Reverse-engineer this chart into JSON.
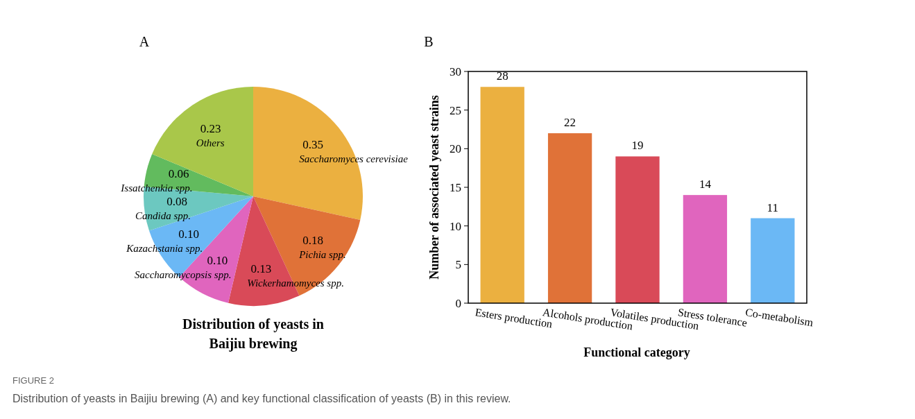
{
  "chart_data": [
    {
      "type": "pie",
      "title": "Distribution of yeasts in Baijiu brewing",
      "annotations": [
        "A"
      ],
      "categories": [
        "Saccharomyces cerevisiae",
        "Pichia spp.",
        "Wickerhamomyces spp.",
        "Saccharomycopsis spp.",
        "Kazachstania spp.",
        "Candida spp.",
        "Issatchenkia spp.",
        "Others"
      ],
      "values": [
        0.35,
        0.18,
        0.13,
        0.1,
        0.1,
        0.08,
        0.06,
        0.23
      ],
      "colors": [
        "#ebb040",
        "#e07238",
        "#d94a58",
        "#e065be",
        "#6bb8f5",
        "#6cc8c0",
        "#62bb5e",
        "#a9c74a"
      ],
      "value_labels": [
        "0.35",
        "0.18",
        "0.13",
        "0.10",
        "0.10",
        "0.08",
        "0.06",
        "0.23"
      ]
    },
    {
      "type": "bar",
      "annotations": [
        "B",
        "FIGURE 2",
        "Distribution of yeasts in Baijiu brewing (A) and key functional classification of yeasts (B) in this review."
      ],
      "xlabel": "Functional category",
      "ylabel": "Number of associated yeast strains",
      "categories": [
        "Esters production",
        "Alcohols production",
        "Volatiles production",
        "Stress tolerance",
        "Co-metabolism"
      ],
      "values": [
        28,
        22,
        19,
        14,
        11
      ],
      "colors": [
        "#ebb040",
        "#e07238",
        "#d94a58",
        "#e065be",
        "#6bb8f5"
      ],
      "ylim": [
        0,
        30
      ],
      "yticks": [
        0,
        5,
        10,
        15,
        20,
        25,
        30
      ],
      "data_labels": true
    }
  ]
}
